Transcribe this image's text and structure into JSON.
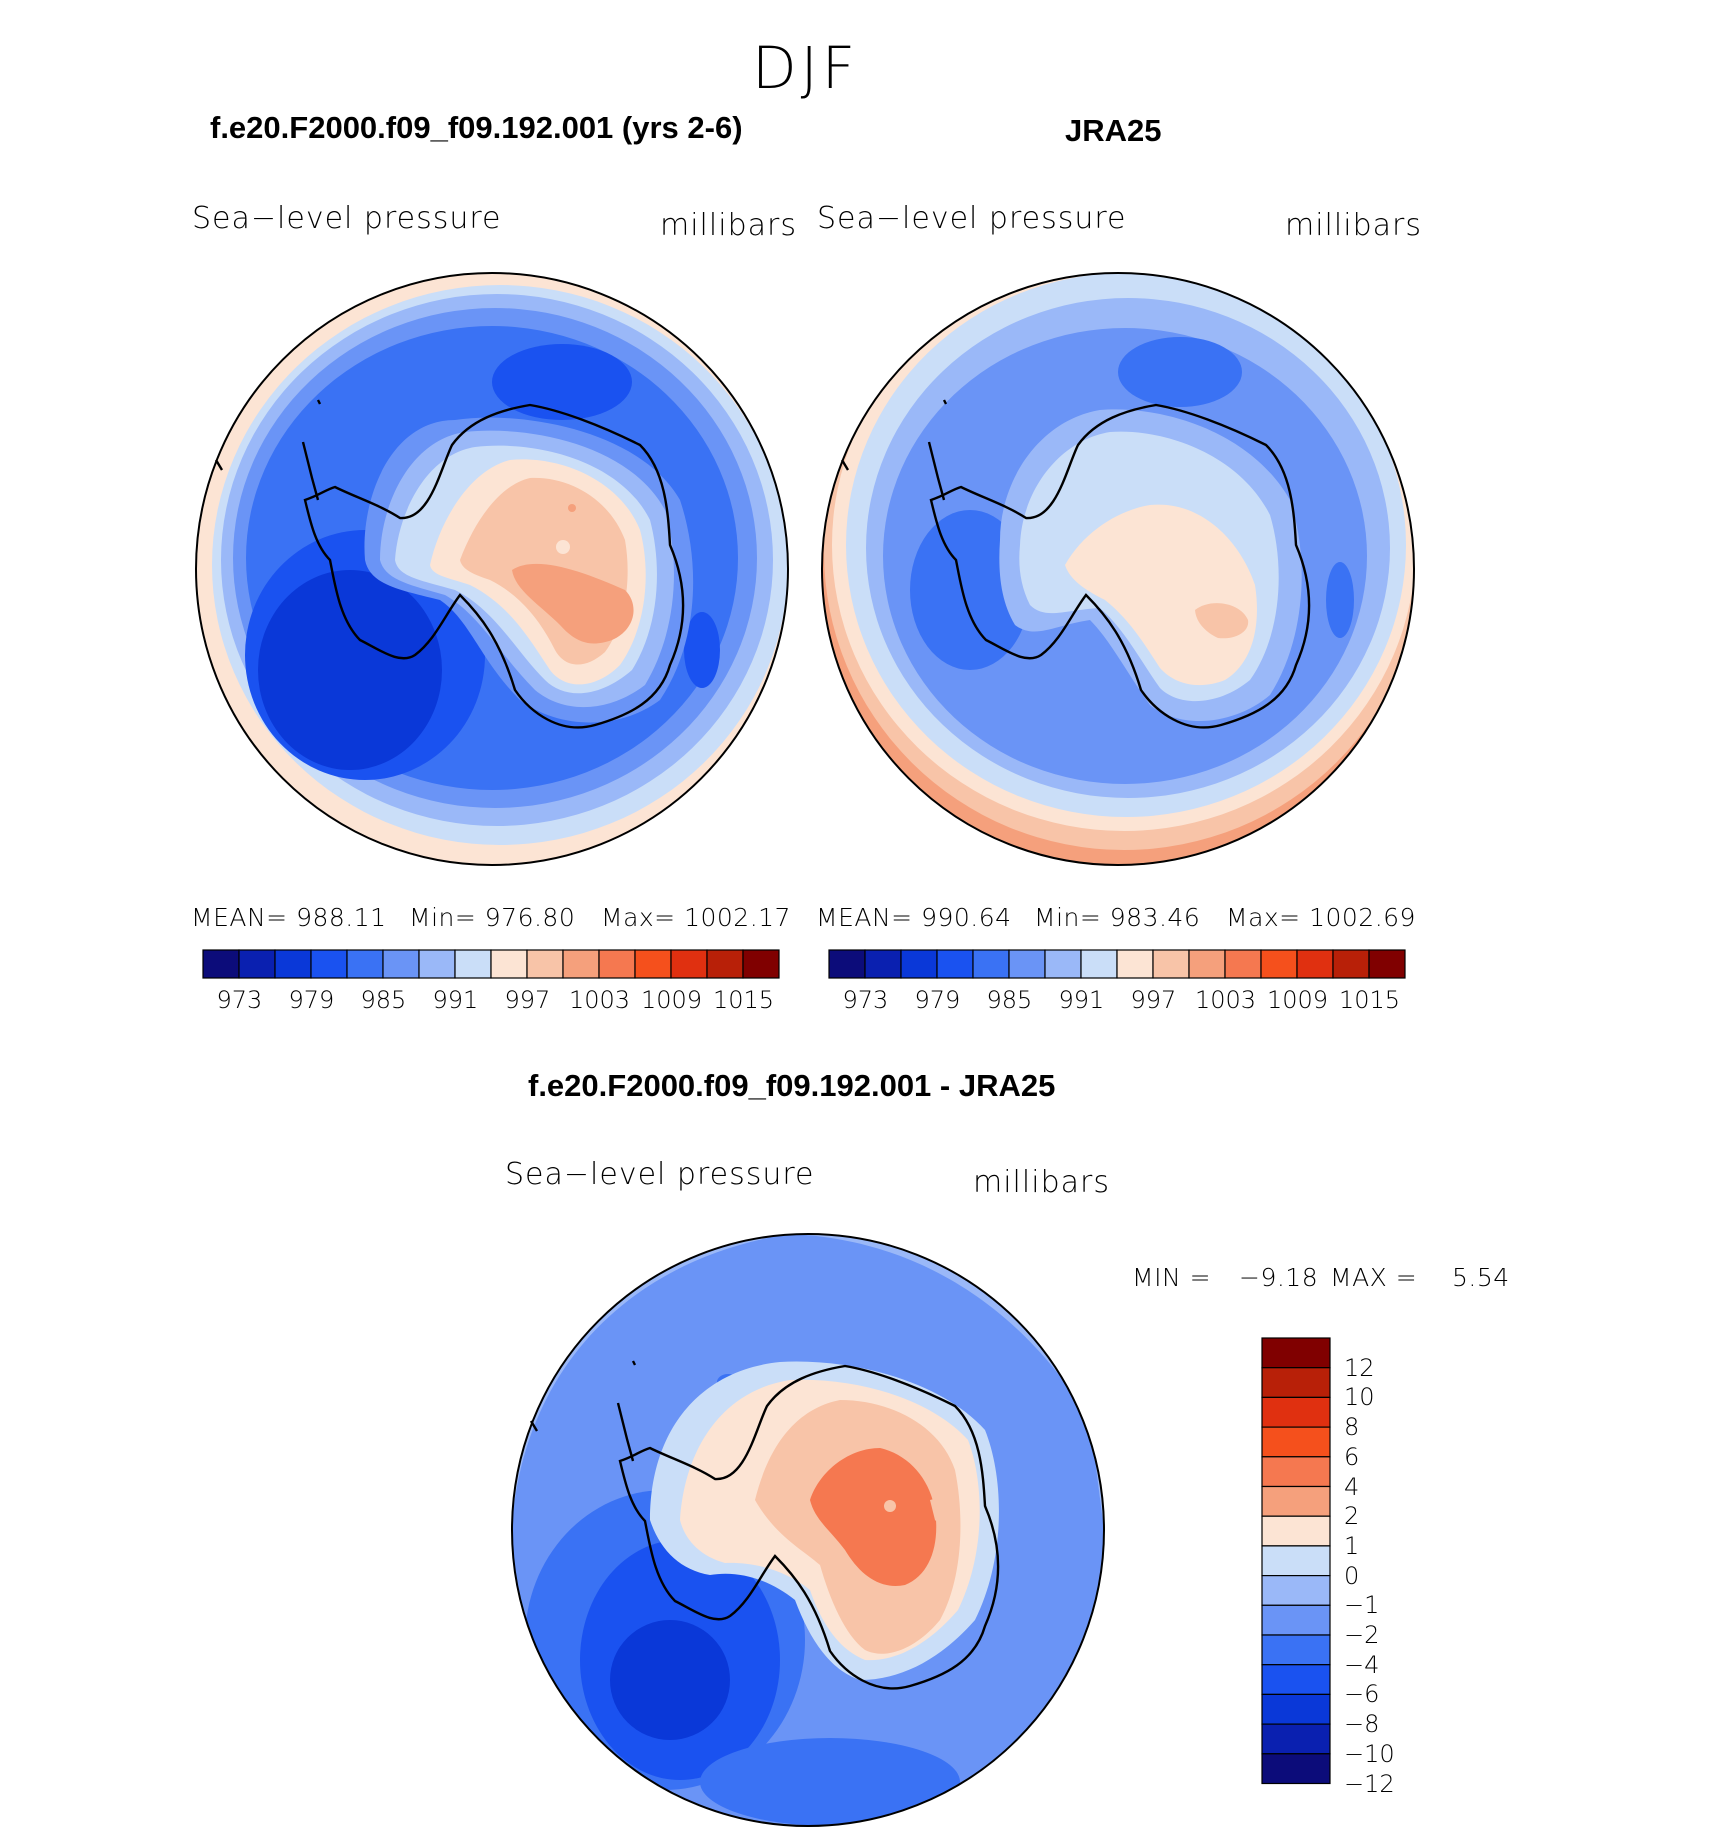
{
  "season": "DJF",
  "panel_model": {
    "title": "f.e20.F2000.f09_f09.192.001 (yrs 2-6)",
    "left_label": "Sea−level pressure",
    "right_label": "millibars",
    "stats": {
      "mean": "MEAN= 988.11",
      "min": "Min= 976.80",
      "max": "Max= 1002.17"
    }
  },
  "panel_obs": {
    "title": "JRA25",
    "left_label": "Sea−level pressure",
    "right_label": "millibars",
    "stats": {
      "mean": "MEAN= 990.64",
      "min": "Min= 983.46",
      "max": "Max= 1002.69"
    }
  },
  "panel_diff": {
    "title": "f.e20.F2000.f09_f09.192.001 - JRA25",
    "left_label": "Sea−level pressure",
    "right_label": "millibars",
    "minmax": {
      "min_label": "MIN =",
      "min_value": "−9.18",
      "max_label": "MAX =",
      "max_value": "5.54"
    }
  },
  "colorbar_abs": {
    "colors": [
      "#0c0c7a",
      "#0a20b0",
      "#0a38d8",
      "#1a52f0",
      "#3a72f4",
      "#6a94f6",
      "#9ab8f8",
      "#cadef8",
      "#fce4d4",
      "#f8c4a8",
      "#f5a07c",
      "#f57850",
      "#f5501c",
      "#e03010",
      "#b82008",
      "#800000"
    ],
    "ticks": [
      "973",
      "979",
      "985",
      "991",
      "997",
      "1003",
      "1009",
      "1015"
    ]
  },
  "colorbar_diff": {
    "colors_top_to_bottom": [
      "#800000",
      "#b82008",
      "#e03010",
      "#f5501c",
      "#f57850",
      "#f5a07c",
      "#fce4d4",
      "#cadef8",
      "#9ab8f8",
      "#6a94f6",
      "#3a72f4",
      "#1a52f0",
      "#0a38d8",
      "#0a20b0",
      "#0c0c7a"
    ],
    "ticks": [
      "12",
      "10",
      "8",
      "6",
      "4",
      "2",
      "1",
      "0",
      "−1",
      "−2",
      "−4",
      "−6",
      "−8",
      "−10",
      "−12"
    ]
  },
  "palette": {
    "ocean_deep": "#0a38d8",
    "ocean_mid": "#3a72f4",
    "ocean_light": "#6a94f6",
    "ocean_pale": "#9ab8f8",
    "near_zero_blue": "#cadef8",
    "near_zero_red": "#fce4d4",
    "warm_light": "#f8c4a8",
    "warm_mid": "#f5a07c",
    "warm_strong": "#f57850"
  }
}
